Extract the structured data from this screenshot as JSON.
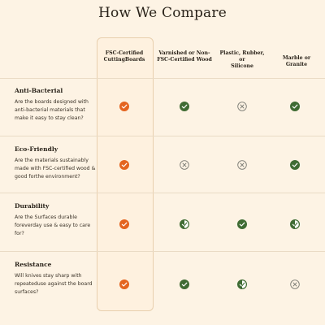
{
  "title": "How We Compare",
  "columns": [
    {
      "line1": "FSC-Certified",
      "line2": "CuttingBoards"
    },
    {
      "line1": "Varnished or Non-",
      "line2": "FSC-Certified Wood"
    },
    {
      "line1": "Plastic, Rubber, or",
      "line2": "Silicone"
    },
    {
      "line1": "Marble or Granite",
      "line2": ""
    }
  ],
  "rows": [
    {
      "title": "Anti-Bacterial",
      "desc": "Are the boards designed with anti-bacterial materials that make it easy to stay clean?",
      "marks": [
        "check-orange-icon",
        "check-green-icon",
        "x-circle-icon",
        "check-green-icon"
      ]
    },
    {
      "title": "Eco-Friendly",
      "desc": "Are the materials sustainably made with FSC-certified wood & good forthe environment?",
      "marks": [
        "check-orange-icon",
        "x-circle-icon",
        "x-circle-icon",
        "check-green-icon"
      ]
    },
    {
      "title": "Durability",
      "desc": "Are the Surfaces durable foreverday use & easy to care for?",
      "marks": [
        "check-orange-icon",
        "half-check-green-icon",
        "check-green-icon",
        "half-check-green-icon"
      ]
    },
    {
      "title": "Resistance",
      "desc": "Will knives stay sharp with repeateduse against the board surfaces?",
      "marks": [
        "check-orange-icon",
        "check-green-icon",
        "half-check-green-icon",
        "x-circle-icon"
      ]
    }
  ],
  "colors": {
    "orange": "#e4641f",
    "green": "#3f6b33",
    "x_gray": "#7d7d76",
    "background": "#fdf3e4"
  }
}
